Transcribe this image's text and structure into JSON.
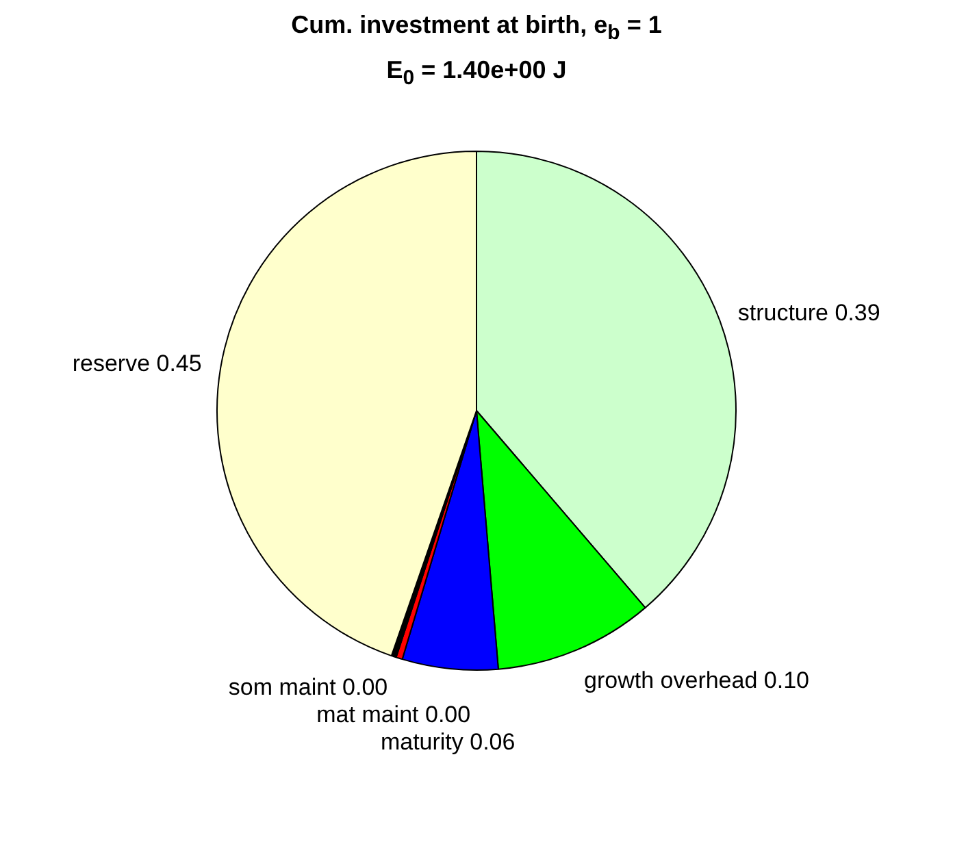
{
  "chart_data": {
    "type": "pie",
    "title": "Cum. investment at birth, e$_{b}$ = 1",
    "subtitle": "E$_{0}$ = 1.40e+00 J",
    "categories": [
      "structure",
      "growth overhead",
      "maturity",
      "mat maint",
      "som maint",
      "reserve"
    ],
    "values": [
      0.39,
      0.1,
      0.06,
      0.004,
      0.003,
      0.45
    ],
    "value_labels": [
      "0.39",
      "0.10",
      "0.06",
      "0.00",
      "0.00",
      "0.45"
    ],
    "colors": [
      "#ccffcc",
      "#00ff00",
      "#0000ff",
      "#ff0000",
      "#000000",
      "#ffffcc"
    ]
  }
}
